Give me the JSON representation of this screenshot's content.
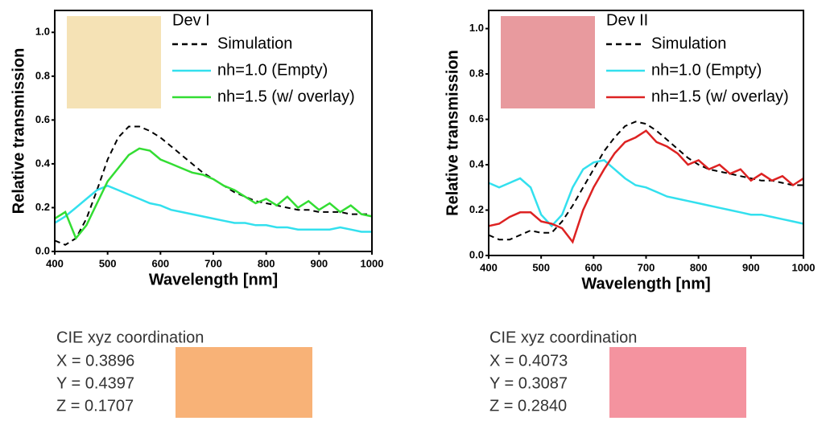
{
  "chart_data": [
    {
      "type": "line",
      "xlabel": "Wavelength [nm]",
      "ylabel": "Relative transmission",
      "legend_title": "Dev I",
      "legend": "upper right",
      "inset_color": "#f5e2b5",
      "x": [
        400,
        420,
        440,
        460,
        480,
        500,
        520,
        540,
        560,
        580,
        600,
        620,
        640,
        660,
        680,
        700,
        720,
        740,
        760,
        780,
        800,
        820,
        840,
        860,
        880,
        900,
        920,
        940,
        960,
        980,
        1000
      ],
      "series": [
        {
          "name": "Simulation",
          "color": "#000000",
          "linestyle": "dashed",
          "values": [
            0.05,
            0.03,
            0.06,
            0.15,
            0.28,
            0.42,
            0.52,
            0.57,
            0.57,
            0.55,
            0.52,
            0.48,
            0.44,
            0.4,
            0.36,
            0.33,
            0.3,
            0.27,
            0.25,
            0.23,
            0.22,
            0.21,
            0.2,
            0.19,
            0.19,
            0.18,
            0.18,
            0.18,
            0.17,
            0.17,
            0.17
          ]
        },
        {
          "name": "nh=1.0 (Empty)",
          "color": "#33e0ee",
          "linestyle": "solid",
          "values": [
            0.13,
            0.16,
            0.2,
            0.24,
            0.28,
            0.3,
            0.28,
            0.26,
            0.24,
            0.22,
            0.21,
            0.19,
            0.18,
            0.17,
            0.16,
            0.15,
            0.14,
            0.13,
            0.13,
            0.12,
            0.12,
            0.11,
            0.11,
            0.1,
            0.1,
            0.1,
            0.1,
            0.11,
            0.1,
            0.09,
            0.09
          ]
        },
        {
          "name": "nh=1.5 (w/ overlay)",
          "color": "#33dd33",
          "linestyle": "solid",
          "values": [
            0.15,
            0.18,
            0.06,
            0.12,
            0.22,
            0.32,
            0.38,
            0.44,
            0.47,
            0.46,
            0.42,
            0.4,
            0.38,
            0.36,
            0.35,
            0.33,
            0.3,
            0.28,
            0.25,
            0.22,
            0.24,
            0.21,
            0.25,
            0.2,
            0.23,
            0.19,
            0.22,
            0.18,
            0.21,
            0.17,
            0.16
          ]
        }
      ],
      "xlim": [
        400,
        1000
      ],
      "xticks": [
        400,
        500,
        600,
        700,
        800,
        900,
        1000
      ],
      "ylim": [
        0,
        1.1
      ],
      "yticks": [
        {
          "value": 0,
          "label": "0.0"
        },
        0.2,
        0.4,
        0.6,
        0.8,
        {
          "value": 1,
          "label": "1.0"
        }
      ]
    },
    {
      "type": "line",
      "xlabel": "Wavelength [nm]",
      "ylabel": "Relative transmission",
      "legend_title": "Dev II",
      "legend": "upper right",
      "inset_color": "#e89a9e",
      "x": [
        400,
        420,
        440,
        460,
        480,
        500,
        520,
        540,
        560,
        580,
        600,
        620,
        640,
        660,
        680,
        700,
        720,
        740,
        760,
        780,
        800,
        820,
        840,
        860,
        880,
        900,
        920,
        940,
        960,
        980,
        1000
      ],
      "series": [
        {
          "name": "Simulation",
          "color": "#000000",
          "linestyle": "dashed",
          "values": [
            0.09,
            0.07,
            0.07,
            0.09,
            0.11,
            0.1,
            0.1,
            0.15,
            0.22,
            0.3,
            0.38,
            0.46,
            0.52,
            0.57,
            0.59,
            0.58,
            0.55,
            0.51,
            0.47,
            0.43,
            0.4,
            0.38,
            0.37,
            0.36,
            0.35,
            0.34,
            0.33,
            0.33,
            0.32,
            0.31,
            0.31
          ]
        },
        {
          "name": "nh=1.0 (Empty)",
          "color": "#33e0ee",
          "linestyle": "solid",
          "values": [
            0.32,
            0.3,
            0.32,
            0.34,
            0.3,
            0.18,
            0.13,
            0.18,
            0.3,
            0.38,
            0.41,
            0.42,
            0.38,
            0.34,
            0.31,
            0.3,
            0.28,
            0.26,
            0.25,
            0.24,
            0.23,
            0.22,
            0.21,
            0.2,
            0.19,
            0.18,
            0.18,
            0.17,
            0.16,
            0.15,
            0.14
          ]
        },
        {
          "name": "nh=1.5 (w/ overlay)",
          "color": "#dd2222",
          "linestyle": "solid",
          "values": [
            0.13,
            0.14,
            0.17,
            0.19,
            0.19,
            0.15,
            0.14,
            0.12,
            0.06,
            0.2,
            0.3,
            0.38,
            0.45,
            0.5,
            0.52,
            0.55,
            0.5,
            0.48,
            0.45,
            0.4,
            0.42,
            0.38,
            0.4,
            0.36,
            0.38,
            0.33,
            0.36,
            0.33,
            0.35,
            0.31,
            0.34
          ]
        }
      ],
      "xlim": [
        400,
        1000
      ],
      "xticks": [
        400,
        500,
        600,
        700,
        800,
        900,
        1000
      ],
      "ylim": [
        0,
        1.08
      ],
      "yticks": [
        {
          "value": 0,
          "label": "0.0"
        },
        0.2,
        0.4,
        0.6,
        0.8,
        {
          "value": 1,
          "label": "1.0"
        }
      ]
    }
  ],
  "cie": [
    {
      "title": "CIE xyz coordination",
      "lines": [
        "X = 0.3896",
        "Y = 0.4397",
        "Z = 0.1707"
      ],
      "swatch_color": "#f8b277"
    },
    {
      "title": "CIE xyz coordination",
      "lines": [
        "X = 0.4073",
        "Y = 0.3087",
        "Z = 0.2840"
      ],
      "swatch_color": "#f4939f"
    }
  ]
}
